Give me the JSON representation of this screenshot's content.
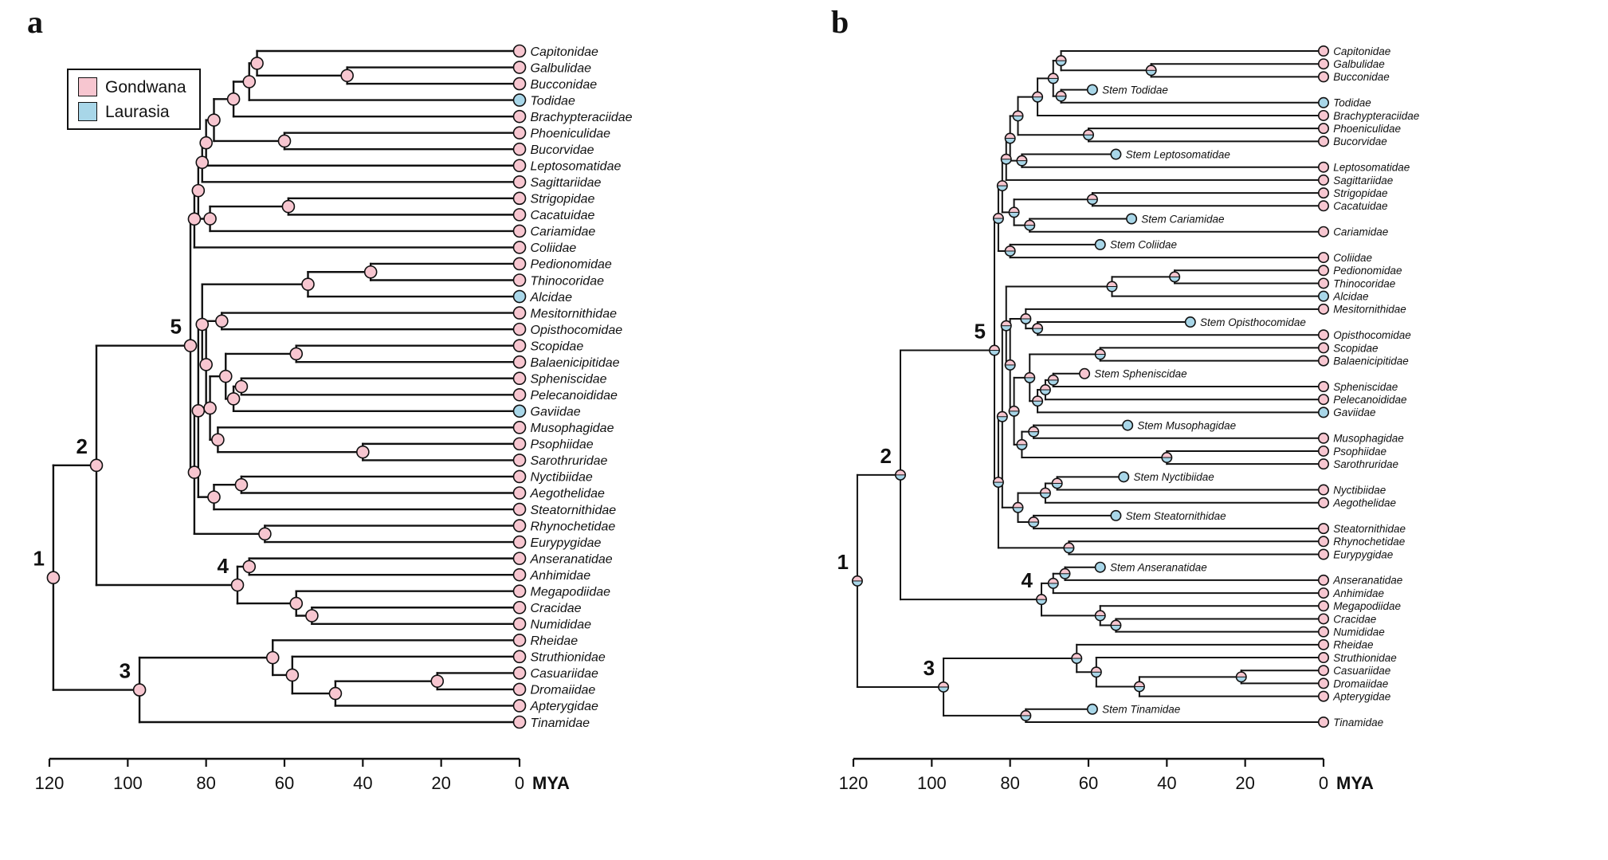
{
  "colors": {
    "gondwana": "#F7C6D0",
    "laurasia": "#A8D6E8",
    "line": "#111111",
    "background": "#FFFFFF"
  },
  "legend": {
    "items": [
      {
        "label": "Gondwana",
        "state": "G"
      },
      {
        "label": "Laurasia",
        "state": "L"
      }
    ]
  },
  "axis": {
    "ticks": [
      "120",
      "100",
      "80",
      "60",
      "40",
      "20",
      "0"
    ],
    "tick_values": [
      120,
      100,
      80,
      60,
      40,
      20,
      0
    ],
    "unit": "MYA",
    "max_age": 120
  },
  "panels": [
    {
      "label": "a",
      "use_stems": false,
      "node_style": "solid"
    },
    {
      "label": "b",
      "use_stems": true,
      "node_style": "pie"
    }
  ],
  "node_numbers": [
    "1",
    "2",
    "3",
    "4",
    "5"
  ],
  "stems": [
    {
      "family": "Todidae",
      "label": "Stem Todidae",
      "attach_age": 67,
      "tip_age": 59,
      "state": "L"
    },
    {
      "family": "Leptosomatidae",
      "label": "Stem Leptosomatidae",
      "attach_age": 77,
      "tip_age": 53,
      "state": "L"
    },
    {
      "family": "Cariamidae",
      "label": "Stem Cariamidae",
      "attach_age": 75,
      "tip_age": 49,
      "state": "L"
    },
    {
      "family": "Coliidae",
      "label": "Stem Coliidae",
      "attach_age": 80,
      "tip_age": 57,
      "state": "L"
    },
    {
      "family": "Opisthocomidae",
      "label": "Stem Opisthocomidae",
      "attach_age": 73,
      "tip_age": 34,
      "state": "L"
    },
    {
      "family": "Spheniscidae",
      "label": "Stem Spheniscidae",
      "attach_age": 69,
      "tip_age": 61,
      "state": "G"
    },
    {
      "family": "Musophagidae",
      "label": "Stem Musophagidae",
      "attach_age": 74,
      "tip_age": 50,
      "state": "L"
    },
    {
      "family": "Nyctibiidae",
      "label": "Stem Nyctibiidae",
      "attach_age": 68,
      "tip_age": 51,
      "state": "L"
    },
    {
      "family": "Steatornithidae",
      "label": "Stem Steatornithidae",
      "attach_age": 74,
      "tip_age": 53,
      "state": "L"
    },
    {
      "family": "Anseranatidae",
      "label": "Stem Anseranatidae",
      "attach_age": 66,
      "tip_age": 57,
      "state": "L"
    },
    {
      "family": "Tinamidae",
      "label": "Stem Tinamidae",
      "attach_age": 76,
      "tip_age": 59,
      "state": "L"
    }
  ],
  "tree": {
    "a": 119,
    "s": "G",
    "num": "1",
    "c": [
      {
        "a": 108,
        "s": "G",
        "num": "2",
        "c": [
          {
            "a": 84,
            "s": "G",
            "num": "5",
            "c": [
              {
                "a": 83,
                "s": "G",
                "c": [
                  {
                    "a": 82,
                    "s": "G",
                    "c": [
                      {
                        "a": 81,
                        "s": "G",
                        "c": [
                          {
                            "a": 80,
                            "s": "G",
                            "c": [
                              {
                                "a": 78,
                                "s": "G",
                                "c": [
                                  {
                                    "a": 73,
                                    "s": "G",
                                    "c": [
                                      {
                                        "a": 69,
                                        "s": "G",
                                        "c": [
                                          {
                                            "a": 67,
                                            "s": "G",
                                            "c": [
                                              {
                                                "n": "Capitonidae",
                                                "a": 0,
                                                "s": "G"
                                              },
                                              {
                                                "a": 44,
                                                "s": "G",
                                                "c": [
                                                  {
                                                    "n": "Galbulidae",
                                                    "a": 0,
                                                    "s": "G"
                                                  },
                                                  {
                                                    "n": "Bucconidae",
                                                    "a": 0,
                                                    "s": "G"
                                                  }
                                                ]
                                              }
                                            ]
                                          },
                                          {
                                            "n": "Todidae",
                                            "a": 0,
                                            "s": "L"
                                          }
                                        ]
                                      },
                                      {
                                        "n": "Brachypteraciidae",
                                        "a": 0,
                                        "s": "G"
                                      }
                                    ]
                                  },
                                  {
                                    "a": 60,
                                    "s": "G",
                                    "c": [
                                      {
                                        "n": "Phoeniculidae",
                                        "a": 0,
                                        "s": "G"
                                      },
                                      {
                                        "n": "Bucorvidae",
                                        "a": 0,
                                        "s": "G"
                                      }
                                    ]
                                  }
                                ]
                              },
                              {
                                "n": "Leptosomatidae",
                                "a": 0,
                                "s": "G"
                              }
                            ]
                          },
                          {
                            "n": "Sagittariidae",
                            "a": 0,
                            "s": "G"
                          }
                        ]
                      },
                      {
                        "a": 79,
                        "s": "G",
                        "c": [
                          {
                            "a": 59,
                            "s": "G",
                            "c": [
                              {
                                "n": "Strigopidae",
                                "a": 0,
                                "s": "G"
                              },
                              {
                                "n": "Cacatuidae",
                                "a": 0,
                                "s": "G"
                              }
                            ]
                          },
                          {
                            "n": "Cariamidae",
                            "a": 0,
                            "s": "G"
                          }
                        ]
                      }
                    ]
                  },
                  {
                    "n": "Coliidae",
                    "a": 0,
                    "s": "G"
                  }
                ]
              },
              {
                "a": 83,
                "s": "G",
                "c": [
                  {
                    "a": 82,
                    "s": "G",
                    "c": [
                      {
                        "a": 81,
                        "s": "G",
                        "c": [
                          {
                            "a": 54,
                            "s": "G",
                            "c": [
                              {
                                "a": 38,
                                "s": "G",
                                "c": [
                                  {
                                    "n": "Pedionomidae",
                                    "a": 0,
                                    "s": "G"
                                  },
                                  {
                                    "n": "Thinocoridae",
                                    "a": 0,
                                    "s": "G"
                                  }
                                ]
                              },
                              {
                                "n": "Alcidae",
                                "a": 0,
                                "s": "L"
                              }
                            ]
                          },
                          {
                            "a": 80,
                            "s": "G",
                            "c": [
                              {
                                "a": 76,
                                "s": "G",
                                "c": [
                                  {
                                    "n": "Mesitornithidae",
                                    "a": 0,
                                    "s": "G"
                                  },
                                  {
                                    "n": "Opisthocomidae",
                                    "a": 0,
                                    "s": "G"
                                  }
                                ]
                              },
                              {
                                "a": 79,
                                "s": "G",
                                "c": [
                                  {
                                    "a": 75,
                                    "s": "G",
                                    "c": [
                                      {
                                        "a": 57,
                                        "s": "G",
                                        "c": [
                                          {
                                            "n": "Scopidae",
                                            "a": 0,
                                            "s": "G"
                                          },
                                          {
                                            "n": "Balaenicipitidae",
                                            "a": 0,
                                            "s": "G"
                                          }
                                        ]
                                      },
                                      {
                                        "a": 73,
                                        "s": "G",
                                        "c": [
                                          {
                                            "a": 71,
                                            "s": "G",
                                            "c": [
                                              {
                                                "n": "Spheniscidae",
                                                "a": 0,
                                                "s": "G"
                                              },
                                              {
                                                "n": "Pelecanoididae",
                                                "a": 0,
                                                "s": "G"
                                              }
                                            ]
                                          },
                                          {
                                            "n": "Gaviidae",
                                            "a": 0,
                                            "s": "L"
                                          }
                                        ]
                                      }
                                    ]
                                  },
                                  {
                                    "a": 77,
                                    "s": "G",
                                    "c": [
                                      {
                                        "n": "Musophagidae",
                                        "a": 0,
                                        "s": "G"
                                      },
                                      {
                                        "a": 40,
                                        "s": "G",
                                        "c": [
                                          {
                                            "n": "Psophiidae",
                                            "a": 0,
                                            "s": "G"
                                          },
                                          {
                                            "n": "Sarothruridae",
                                            "a": 0,
                                            "s": "G"
                                          }
                                        ]
                                      }
                                    ]
                                  }
                                ]
                              }
                            ]
                          }
                        ]
                      },
                      {
                        "a": 78,
                        "s": "G",
                        "c": [
                          {
                            "a": 71,
                            "s": "G",
                            "c": [
                              {
                                "n": "Nyctibiidae",
                                "a": 0,
                                "s": "G"
                              },
                              {
                                "n": "Aegothelidae",
                                "a": 0,
                                "s": "G"
                              }
                            ]
                          },
                          {
                            "n": "Steatornithidae",
                            "a": 0,
                            "s": "G"
                          }
                        ]
                      }
                    ]
                  },
                  {
                    "a": 65,
                    "s": "G",
                    "c": [
                      {
                        "n": "Rhynochetidae",
                        "a": 0,
                        "s": "G"
                      },
                      {
                        "n": "Eurypygidae",
                        "a": 0,
                        "s": "G"
                      }
                    ]
                  }
                ]
              }
            ]
          },
          {
            "a": 72,
            "s": "G",
            "num": "4",
            "c": [
              {
                "a": 69,
                "s": "G",
                "c": [
                  {
                    "n": "Anseranatidae",
                    "a": 0,
                    "s": "G"
                  },
                  {
                    "n": "Anhimidae",
                    "a": 0,
                    "s": "G"
                  }
                ]
              },
              {
                "a": 57,
                "s": "G",
                "c": [
                  {
                    "n": "Megapodiidae",
                    "a": 0,
                    "s": "G"
                  },
                  {
                    "a": 53,
                    "s": "G",
                    "c": [
                      {
                        "n": "Cracidae",
                        "a": 0,
                        "s": "G"
                      },
                      {
                        "n": "Numididae",
                        "a": 0,
                        "s": "G"
                      }
                    ]
                  }
                ]
              }
            ]
          }
        ]
      },
      {
        "a": 97,
        "s": "G",
        "num": "3",
        "c": [
          {
            "a": 63,
            "s": "G",
            "c": [
              {
                "n": "Rheidae",
                "a": 0,
                "s": "G"
              },
              {
                "a": 58,
                "s": "G",
                "c": [
                  {
                    "n": "Struthionidae",
                    "a": 0,
                    "s": "G"
                  },
                  {
                    "a": 47,
                    "s": "G",
                    "c": [
                      {
                        "a": 21,
                        "s": "G",
                        "c": [
                          {
                            "n": "Casuariidae",
                            "a": 0,
                            "s": "G"
                          },
                          {
                            "n": "Dromaiidae",
                            "a": 0,
                            "s": "G"
                          }
                        ]
                      },
                      {
                        "n": "Apterygidae",
                        "a": 0,
                        "s": "G"
                      }
                    ]
                  }
                ]
              }
            ]
          },
          {
            "n": "Tinamidae",
            "a": 0,
            "s": "G"
          }
        ]
      }
    ]
  }
}
